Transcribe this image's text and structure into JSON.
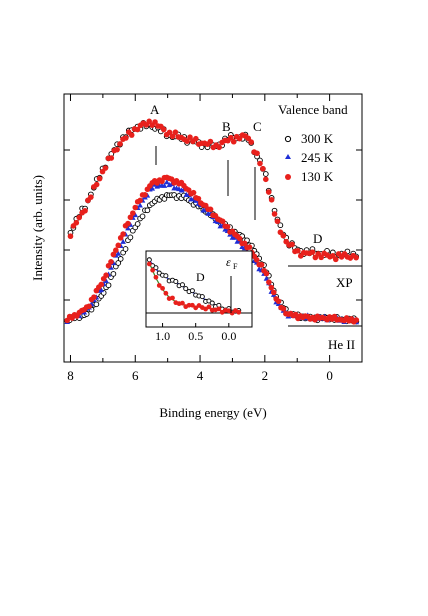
{
  "chart_data": {
    "type": "scatter",
    "title": "",
    "xlabel": "Binding energy (eV)",
    "ylabel": "Intensity (arb. units)",
    "xlim": [
      8.2,
      -1.0
    ],
    "x_reversed": true,
    "x_ticks": [
      "8",
      "6",
      "4",
      "2",
      "0"
    ],
    "grid": false,
    "legend_title": "Valence band",
    "legend_placement": "top-right",
    "legend": [
      {
        "label": "300 K",
        "marker": "open-circle",
        "color": "#000000"
      },
      {
        "label": "245 K",
        "marker": "filled-triangle",
        "color": "#1f2fd6"
      },
      {
        "label": "130 K",
        "marker": "filled-circle",
        "color": "#e8201c"
      }
    ],
    "curve_labels": [
      "XP",
      "He II"
    ],
    "feature_labels": [
      {
        "text": "A",
        "energy": 5.4
      },
      {
        "text": "B",
        "energy": 3.1
      },
      {
        "text": "C",
        "energy": 2.3
      },
      {
        "text": "D",
        "energy": 0.5
      }
    ],
    "xp_series": [
      {
        "name": "300 K",
        "x": [
          8.0,
          7.5,
          7.0,
          6.5,
          6.0,
          5.5,
          5.0,
          4.5,
          4.0,
          3.5,
          3.0,
          2.5,
          2.0,
          1.6,
          1.3,
          1.0,
          0.5,
          0.0,
          -0.5,
          -0.9
        ],
        "y": [
          0.35,
          0.5,
          0.68,
          0.82,
          0.9,
          0.91,
          0.86,
          0.84,
          0.81,
          0.8,
          0.85,
          0.84,
          0.66,
          0.4,
          0.3,
          0.25,
          0.24,
          0.23,
          0.23,
          0.23
        ]
      },
      {
        "name": "130 K",
        "x": [
          8.0,
          7.5,
          7.0,
          6.5,
          6.0,
          5.5,
          5.0,
          4.5,
          4.0,
          3.5,
          3.0,
          2.5,
          2.0,
          1.6,
          1.3,
          1.0,
          0.5,
          0.0,
          -0.5,
          -0.9
        ],
        "y": [
          0.34,
          0.49,
          0.67,
          0.81,
          0.89,
          0.93,
          0.87,
          0.84,
          0.82,
          0.8,
          0.84,
          0.85,
          0.65,
          0.38,
          0.29,
          0.24,
          0.23,
          0.22,
          0.22,
          0.22
        ]
      }
    ],
    "heii_series": [
      {
        "name": "300 K",
        "x": [
          8.1,
          7.5,
          7.0,
          6.5,
          6.0,
          5.5,
          5.0,
          4.5,
          4.0,
          3.5,
          3.0,
          2.5,
          2.0,
          1.6,
          1.3,
          1.0,
          0.5,
          0.0,
          -0.5,
          -0.9
        ],
        "y": [
          0.0,
          0.03,
          0.13,
          0.3,
          0.48,
          0.6,
          0.64,
          0.63,
          0.58,
          0.52,
          0.46,
          0.4,
          0.27,
          0.1,
          0.04,
          0.02,
          0.01,
          0.01,
          0.0,
          0.0
        ]
      },
      {
        "name": "245 K",
        "x": [
          8.1,
          7.5,
          7.0,
          6.5,
          6.0,
          5.5,
          5.0,
          4.5,
          4.0,
          3.5,
          3.0,
          2.5,
          2.0,
          1.6,
          1.3,
          1.0,
          0.5,
          0.0,
          -0.5,
          -0.9
        ],
        "y": [
          0.0,
          0.05,
          0.17,
          0.36,
          0.55,
          0.68,
          0.7,
          0.66,
          0.59,
          0.51,
          0.43,
          0.35,
          0.23,
          0.08,
          0.03,
          0.02,
          0.01,
          0.01,
          0.0,
          0.0
        ]
      },
      {
        "name": "130 K",
        "x": [
          8.1,
          7.5,
          7.0,
          6.5,
          6.0,
          5.5,
          5.0,
          4.5,
          4.0,
          3.5,
          3.0,
          2.5,
          2.0,
          1.6,
          1.3,
          1.0,
          0.5,
          0.0,
          -0.5,
          -0.9
        ],
        "y": [
          0.0,
          0.06,
          0.2,
          0.4,
          0.58,
          0.7,
          0.73,
          0.69,
          0.61,
          0.53,
          0.45,
          0.37,
          0.25,
          0.09,
          0.03,
          0.02,
          0.01,
          0.01,
          0.0,
          0.0
        ]
      }
    ],
    "inset": {
      "xlim": [
        1.25,
        -0.35
      ],
      "x_ticks": [
        "1.0",
        "0.5",
        "0.0"
      ],
      "annotation_D": "D",
      "annotation_ef": "ε",
      "annotation_ef_sub": "F",
      "series": [
        {
          "name": "300 K",
          "x": [
            1.2,
            1.1,
            1.0,
            0.9,
            0.8,
            0.7,
            0.6,
            0.5,
            0.4,
            0.3,
            0.2,
            0.1,
            0.0,
            -0.1,
            -0.2
          ],
          "y": [
            0.95,
            0.78,
            0.68,
            0.6,
            0.55,
            0.48,
            0.4,
            0.34,
            0.27,
            0.2,
            0.14,
            0.08,
            0.05,
            0.03,
            0.02
          ]
        },
        {
          "name": "130 K",
          "x": [
            1.2,
            1.1,
            1.0,
            0.9,
            0.8,
            0.7,
            0.6,
            0.5,
            0.4,
            0.3,
            0.2,
            0.1,
            0.0,
            -0.1,
            -0.2
          ],
          "y": [
            0.9,
            0.62,
            0.42,
            0.28,
            0.2,
            0.15,
            0.13,
            0.12,
            0.1,
            0.08,
            0.06,
            0.04,
            0.03,
            0.02,
            0.02
          ]
        }
      ]
    }
  }
}
